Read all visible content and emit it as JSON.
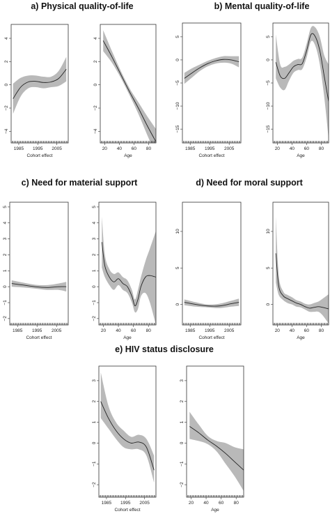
{
  "figure": {
    "sections": [
      {
        "id": "a",
        "letter": "a)",
        "title": "Physical quality-of-life"
      },
      {
        "id": "b",
        "letter": "b)",
        "title": "Mental quality-of-life"
      },
      {
        "id": "c",
        "letter": "c)",
        "title": "Need for material support"
      },
      {
        "id": "d",
        "letter": "d)",
        "title": "Need for moral support"
      },
      {
        "id": "e",
        "letter": "e)",
        "title": "HIV status disclosure"
      }
    ]
  },
  "chart_data": [
    {
      "id": "a-cohort",
      "section": "a",
      "type": "line",
      "xlabel": "Cohort effect",
      "ylabel": "",
      "xlim": [
        1981,
        2011
      ],
      "xticks": [
        1985,
        1995,
        2005
      ],
      "ylim": [
        -5,
        5.2
      ],
      "yticks": [
        -4,
        -2,
        0,
        2,
        4
      ],
      "x": [
        1982,
        1986,
        1990,
        1994,
        1998,
        2002,
        2006,
        2010
      ],
      "y": [
        -1.2,
        -0.2,
        0.25,
        0.3,
        0.2,
        0.25,
        0.55,
        1.35
      ],
      "lower": [
        -2.5,
        -1.0,
        -0.3,
        -0.2,
        -0.3,
        -0.2,
        -0.1,
        0.3
      ],
      "upper": [
        0.1,
        0.6,
        0.8,
        0.8,
        0.7,
        0.7,
        1.2,
        2.4
      ]
    },
    {
      "id": "a-age",
      "section": "a",
      "type": "line",
      "xlabel": "Age",
      "ylabel": "",
      "xlim": [
        14,
        90
      ],
      "xticks": [
        20,
        40,
        60,
        80
      ],
      "ylim": [
        -5,
        5.2
      ],
      "yticks": [
        -4,
        -2,
        0,
        2,
        4
      ],
      "x": [
        18,
        30,
        42,
        54,
        66,
        78,
        90
      ],
      "y": [
        3.8,
        2.4,
        0.9,
        -0.6,
        -2.0,
        -3.5,
        -4.9
      ],
      "lower": [
        2.9,
        1.9,
        0.6,
        -0.9,
        -2.5,
        -4.3,
        -6.0
      ],
      "upper": [
        4.7,
        2.9,
        1.2,
        -0.3,
        -1.5,
        -2.7,
        -3.8
      ]
    },
    {
      "id": "b-cohort",
      "section": "b",
      "type": "line",
      "xlabel": "Cohort effect",
      "ylabel": "",
      "xlim": [
        1981,
        2011
      ],
      "xticks": [
        1985,
        1995,
        2005
      ],
      "ylim": [
        -18,
        8
      ],
      "yticks": [
        -15,
        -10,
        -5,
        0,
        5
      ],
      "x": [
        1982,
        1986,
        1990,
        1994,
        1998,
        2002,
        2006,
        2010
      ],
      "y": [
        -4.0,
        -2.8,
        -1.7,
        -0.8,
        -0.2,
        0.1,
        0.0,
        -0.4
      ],
      "lower": [
        -5.2,
        -3.8,
        -2.4,
        -1.4,
        -0.8,
        -0.6,
        -0.8,
        -1.6
      ],
      "upper": [
        -2.8,
        -1.8,
        -1.0,
        -0.2,
        0.4,
        0.8,
        0.8,
        0.8
      ]
    },
    {
      "id": "b-age",
      "section": "b",
      "type": "line",
      "xlabel": "Age",
      "ylabel": "",
      "xlim": [
        14,
        90
      ],
      "xticks": [
        20,
        40,
        60,
        80
      ],
      "ylim": [
        -18,
        8
      ],
      "yticks": [
        -15,
        -10,
        -5,
        0,
        5
      ],
      "x": [
        18,
        24,
        30,
        36,
        42,
        48,
        54,
        60,
        66,
        72,
        78,
        84,
        90
      ],
      "y": [
        -0.5,
        -3.5,
        -4.0,
        -2.8,
        -1.5,
        -1.0,
        -0.8,
        2.0,
        5.5,
        5.0,
        2.0,
        -3.5,
        -9.0
      ],
      "lower": [
        -4.0,
        -6.0,
        -6.5,
        -4.5,
        -2.8,
        -2.2,
        -2.0,
        0.5,
        4.0,
        3.0,
        -1.0,
        -8.0,
        -17.0
      ],
      "upper": [
        5.5,
        -1.0,
        -1.5,
        -1.0,
        -0.2,
        0.2,
        0.5,
        3.5,
        7.0,
        7.0,
        5.0,
        1.0,
        -1.0
      ]
    },
    {
      "id": "c-cohort",
      "section": "c",
      "type": "line",
      "xlabel": "Cohort effect",
      "ylabel": "",
      "xlim": [
        1981,
        2011
      ],
      "xticks": [
        1985,
        1995,
        2005
      ],
      "ylim": [
        -2.4,
        5.3
      ],
      "yticks": [
        -2,
        -1,
        0,
        1,
        2,
        3,
        4,
        5
      ],
      "x": [
        1982,
        1988,
        1994,
        2000,
        2006,
        2010
      ],
      "y": [
        0.2,
        0.1,
        0.0,
        -0.05,
        0.0,
        0.0
      ],
      "lower": [
        0.0,
        -0.05,
        -0.12,
        -0.2,
        -0.2,
        -0.3
      ],
      "upper": [
        0.4,
        0.25,
        0.12,
        0.1,
        0.2,
        0.3
      ]
    },
    {
      "id": "c-age",
      "section": "c",
      "type": "line",
      "xlabel": "Age",
      "ylabel": "",
      "xlim": [
        14,
        90
      ],
      "xticks": [
        20,
        40,
        60,
        80
      ],
      "ylim": [
        -2.4,
        5.3
      ],
      "yticks": [
        -2,
        -1,
        0,
        1,
        2,
        3,
        4,
        5
      ],
      "x": [
        18,
        22,
        28,
        34,
        40,
        46,
        52,
        58,
        62,
        66,
        70,
        76,
        82,
        90
      ],
      "y": [
        2.8,
        1.3,
        0.6,
        0.3,
        0.5,
        0.2,
        0.0,
        -0.6,
        -1.2,
        -0.8,
        0.0,
        0.6,
        0.7,
        0.6
      ],
      "lower": [
        1.2,
        0.6,
        0.1,
        -0.2,
        0.1,
        -0.2,
        -0.4,
        -1.0,
        -1.6,
        -1.4,
        -0.6,
        -0.4,
        -1.0,
        -2.4
      ],
      "upper": [
        4.4,
        2.0,
        1.1,
        0.8,
        0.9,
        0.6,
        0.4,
        -0.2,
        -0.8,
        -0.2,
        0.6,
        1.6,
        2.4,
        3.5
      ]
    },
    {
      "id": "d-cohort",
      "section": "d",
      "type": "line",
      "xlabel": "Cohort effect",
      "ylabel": "",
      "xlim": [
        1981,
        2011
      ],
      "xticks": [
        1985,
        1995,
        2005
      ],
      "ylim": [
        -2.8,
        14
      ],
      "yticks": [
        0,
        5,
        10
      ],
      "x": [
        1982,
        1988,
        1994,
        2000,
        2006,
        2010
      ],
      "y": [
        0.3,
        0.0,
        -0.2,
        -0.2,
        0.1,
        0.3
      ],
      "lower": [
        -0.1,
        -0.3,
        -0.4,
        -0.5,
        -0.3,
        -0.2
      ],
      "upper": [
        0.7,
        0.3,
        0.0,
        0.1,
        0.5,
        0.8
      ]
    },
    {
      "id": "d-age",
      "section": "d",
      "type": "line",
      "xlabel": "Age",
      "ylabel": "",
      "xlim": [
        14,
        90
      ],
      "xticks": [
        20,
        40,
        60,
        80
      ],
      "ylim": [
        -2.8,
        14
      ],
      "yticks": [
        0,
        5,
        10
      ],
      "x": [
        18,
        22,
        28,
        34,
        40,
        46,
        52,
        58,
        64,
        70,
        76,
        82,
        90
      ],
      "y": [
        7.0,
        2.5,
        1.2,
        0.8,
        0.5,
        0.2,
        0.0,
        -0.3,
        -0.5,
        -0.4,
        -0.3,
        -0.4,
        -0.6
      ],
      "lower": [
        3.0,
        1.3,
        0.6,
        0.2,
        0.0,
        -0.3,
        -0.4,
        -0.7,
        -1.0,
        -1.0,
        -1.0,
        -1.5,
        -2.6
      ],
      "upper": [
        12.0,
        4.0,
        1.8,
        1.3,
        1.0,
        0.6,
        0.4,
        0.1,
        0.0,
        0.2,
        0.4,
        0.8,
        1.4
      ]
    },
    {
      "id": "e-cohort",
      "section": "e",
      "type": "line",
      "xlabel": "Cohort effect",
      "ylabel": "",
      "xlim": [
        1981,
        2011
      ],
      "xticks": [
        1985,
        1995,
        2005
      ],
      "ylim": [
        -2.6,
        3.7
      ],
      "yticks": [
        -2,
        -1,
        0,
        1,
        2,
        3
      ],
      "x": [
        1982,
        1986,
        1990,
        1994,
        1998,
        2002,
        2006,
        2010
      ],
      "y": [
        2.0,
        1.2,
        0.6,
        0.2,
        0.0,
        0.05,
        -0.2,
        -1.3
      ],
      "lower": [
        1.2,
        0.7,
        0.2,
        -0.2,
        -0.3,
        -0.3,
        -0.6,
        -1.9
      ],
      "upper": [
        3.4,
        1.8,
        1.0,
        0.6,
        0.3,
        0.4,
        0.2,
        -0.6
      ]
    },
    {
      "id": "e-age",
      "section": "e",
      "type": "line",
      "xlabel": "Age",
      "ylabel": "",
      "xlim": [
        14,
        90
      ],
      "xticks": [
        20,
        40,
        60,
        80
      ],
      "ylim": [
        -2.6,
        3.7
      ],
      "yticks": [
        -2,
        -1,
        0,
        1,
        2,
        3
      ],
      "x": [
        18,
        30,
        42,
        54,
        66,
        78,
        90
      ],
      "y": [
        0.8,
        0.5,
        0.15,
        -0.15,
        -0.5,
        -0.9,
        -1.3
      ],
      "lower": [
        0.2,
        0.1,
        -0.05,
        -0.4,
        -1.0,
        -1.6,
        -2.3
      ],
      "upper": [
        1.5,
        0.9,
        0.35,
        0.1,
        0.0,
        -0.2,
        -0.3
      ]
    }
  ]
}
